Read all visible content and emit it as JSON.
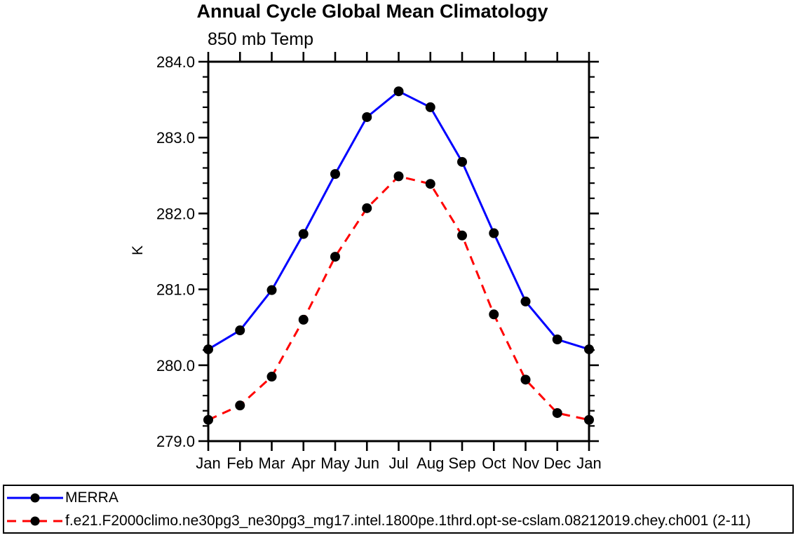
{
  "page": {
    "background": "#ffffff",
    "text_color": "#000000"
  },
  "chart_data": {
    "type": "line",
    "title": "Annual Cycle Global Mean Climatology",
    "subtitle": "850 mb Temp",
    "xlabel": "",
    "ylabel": "K",
    "categories": [
      "Jan",
      "Feb",
      "Mar",
      "Apr",
      "May",
      "Jun",
      "Jul",
      "Aug",
      "Sep",
      "Oct",
      "Nov",
      "Dec",
      "Jan"
    ],
    "ylim": [
      279.0,
      284.0
    ],
    "ytick_labels": [
      "279.0",
      "280.0",
      "281.0",
      "282.0",
      "283.0",
      "284.0"
    ],
    "ytick_minor_interval": 0.2,
    "grid": false,
    "axis_color": "#000000",
    "marker": {
      "shape": "filled-circle",
      "color": "#000000",
      "size": 14
    },
    "legend_position": "bottom-outside-boxed",
    "series": [
      {
        "name": "MERRA",
        "color": "#0000ff",
        "line_style": "solid",
        "values": [
          280.21,
          280.46,
          280.99,
          281.73,
          282.52,
          283.27,
          283.61,
          283.4,
          282.68,
          281.74,
          280.84,
          280.34,
          280.21
        ]
      },
      {
        "name": "f.e21.F2000climo.ne30pg3_ne30pg3_mg17.intel.1800pe.1thrd.opt-se-cslam.08212019.chey.ch001 (2-11)",
        "color": "#ff0000",
        "line_style": "dashed",
        "values": [
          279.28,
          279.47,
          279.85,
          280.6,
          281.43,
          282.07,
          282.49,
          282.39,
          281.71,
          280.67,
          279.81,
          279.37,
          279.28
        ]
      }
    ]
  }
}
